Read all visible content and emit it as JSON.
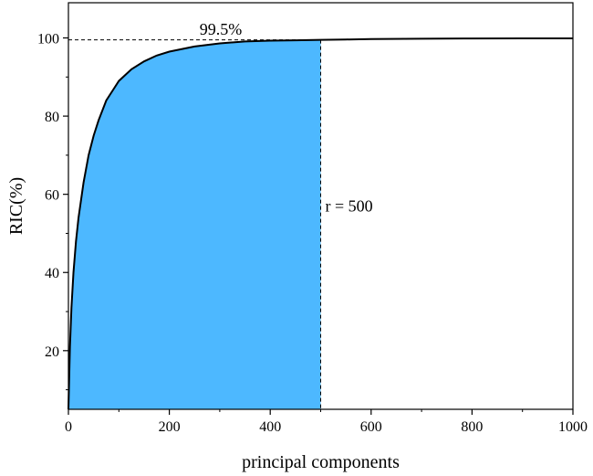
{
  "chart_data": {
    "type": "area",
    "xlabel": "principal components",
    "ylabel": "RIC(%)",
    "xlim": [
      0,
      1000
    ],
    "ylim": [
      5,
      109
    ],
    "x_ticks": [
      0,
      200,
      400,
      600,
      800,
      1000
    ],
    "y_ticks": [
      20,
      40,
      60,
      80,
      100
    ],
    "grid": false,
    "fill_color": "#4db8ff",
    "series": [
      {
        "x": [
          0,
          3,
          6,
          10,
          15,
          20,
          30,
          40,
          50,
          60,
          75,
          90,
          100,
          125,
          150,
          175,
          200,
          250,
          300,
          350,
          400,
          450,
          500,
          550,
          600,
          700,
          800,
          900,
          1000
        ],
        "values": [
          5,
          21,
          31,
          40,
          48,
          54,
          63,
          70,
          75,
          79,
          84,
          87,
          89,
          92,
          94,
          95.5,
          96.5,
          97.8,
          98.6,
          99.1,
          99.3,
          99.4,
          99.5,
          99.6,
          99.7,
          99.8,
          99.85,
          99.9,
          99.9
        ],
        "fill_to_x": 500
      }
    ],
    "annotations": [
      {
        "text": "99.5%",
        "x": 300,
        "y": 99.5
      },
      {
        "text": "r = 500",
        "x": 500,
        "y": 57
      }
    ]
  }
}
